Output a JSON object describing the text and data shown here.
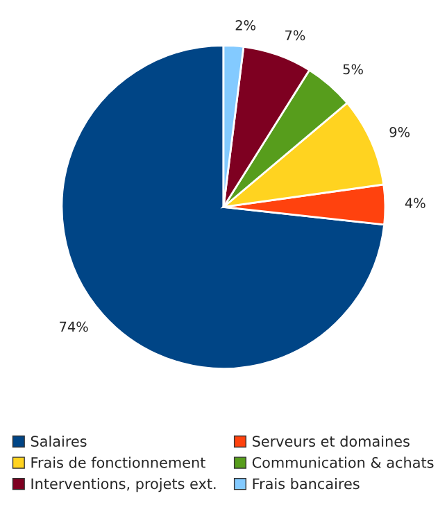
{
  "chart_data": {
    "type": "pie",
    "categories": [
      "Salaires",
      "Serveurs et domaines",
      "Frais de fonctionnement",
      "Communication & achats",
      "Interventions, projets ext.",
      "Frais bancaires"
    ],
    "values": [
      74,
      4,
      9,
      5,
      7,
      2
    ],
    "colors": [
      "#004586",
      "#ff420e",
      "#ffd320",
      "#579d1c",
      "#7e0021",
      "#83caff"
    ],
    "value_labels": [
      "74%",
      "4%",
      "9%",
      "5%",
      "7%",
      "2%"
    ],
    "legend": "bottom"
  }
}
